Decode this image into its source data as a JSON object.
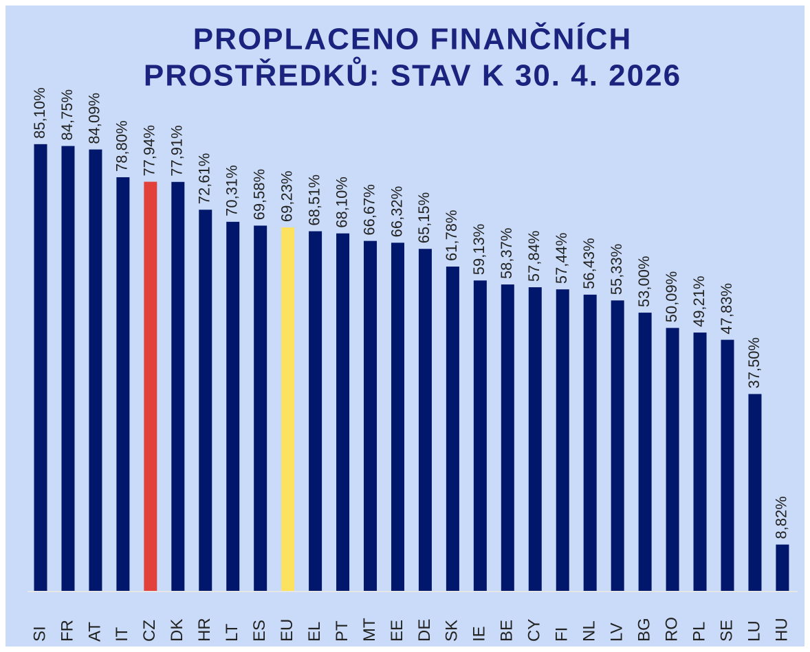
{
  "chart_data": {
    "type": "bar",
    "title": [
      "PROPLACENO FINANČNÍCH",
      "PROSTŘEDKŮ: STAV K 30. 4. 2026"
    ],
    "categories": [
      "SI",
      "FR",
      "AT",
      "IT",
      "CZ",
      "DK",
      "HR",
      "LT",
      "ES",
      "EU",
      "EL",
      "PT",
      "MT",
      "EE",
      "DE",
      "SK",
      "IE",
      "BE",
      "CY",
      "FI",
      "NL",
      "LV",
      "BG",
      "RO",
      "PL",
      "SE",
      "LU",
      "HU"
    ],
    "values": [
      85.1,
      84.75,
      84.09,
      78.8,
      77.94,
      77.91,
      72.61,
      70.31,
      69.58,
      69.23,
      68.51,
      68.1,
      66.67,
      66.32,
      65.15,
      61.78,
      59.13,
      58.37,
      57.84,
      57.44,
      56.43,
      55.33,
      53.0,
      50.09,
      49.21,
      47.83,
      37.5,
      8.82
    ],
    "value_labels": [
      "85,10%",
      "84,75%",
      "84,09%",
      "78,80%",
      "77,94%",
      "77,91%",
      "72,61%",
      "70,31%",
      "69,58%",
      "69,23%",
      "68,51%",
      "68,10%",
      "66,67%",
      "66,32%",
      "65,15%",
      "61,78%",
      "59,13%",
      "58,37%",
      "57,84%",
      "57,44%",
      "56,43%",
      "55,33%",
      "53,00%",
      "50,09%",
      "49,21%",
      "47,83%",
      "37,50%",
      "8,82%"
    ],
    "colors": [
      "#00176b",
      "#00176b",
      "#00176b",
      "#00176b",
      "#e2413b",
      "#00176b",
      "#00176b",
      "#00176b",
      "#00176b",
      "#fde25f",
      "#00176b",
      "#00176b",
      "#00176b",
      "#00176b",
      "#00176b",
      "#00176b",
      "#00176b",
      "#00176b",
      "#00176b",
      "#00176b",
      "#00176b",
      "#00176b",
      "#00176b",
      "#00176b",
      "#00176b",
      "#00176b",
      "#00176b",
      "#00176b"
    ]
  }
}
